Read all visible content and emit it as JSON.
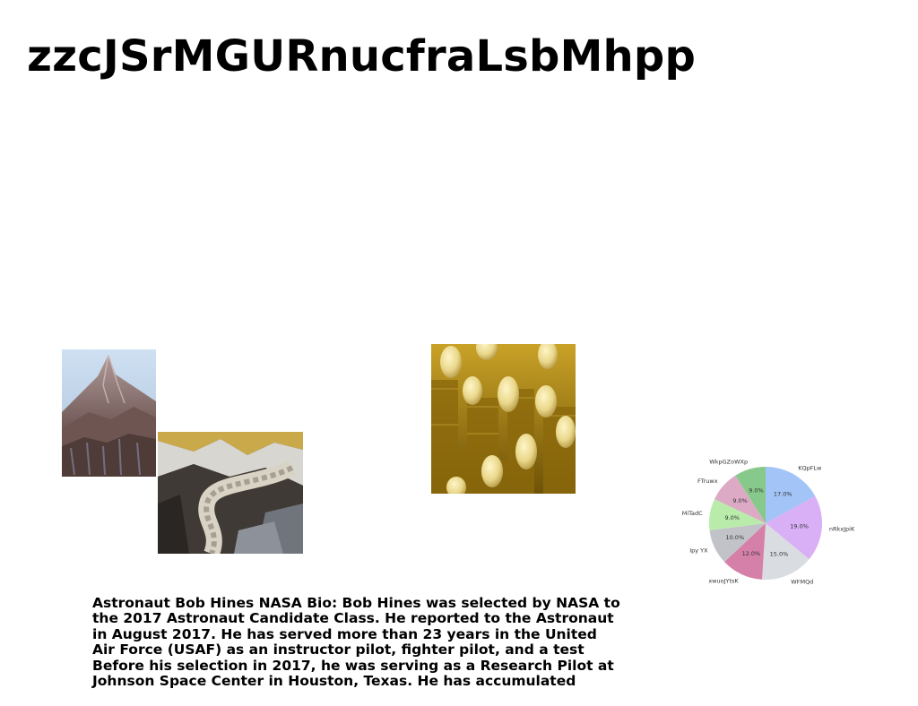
{
  "page": {
    "title": "zzcJSrMGURnucfraLsbMhpp"
  },
  "images": [
    {
      "name": "mountain-photo"
    },
    {
      "name": "glacier-photo"
    },
    {
      "name": "coins-eggs-photo"
    }
  ],
  "chart_data": {
    "type": "pie",
    "title": "",
    "slices": [
      {
        "label": "KQpFLw",
        "value": 17.0,
        "pct_label": "17.0%",
        "color": "#a2c4f6"
      },
      {
        "label": "nRkxJpiK",
        "value": 19.0,
        "pct_label": "19.0%",
        "color": "#d9aff5"
      },
      {
        "label": "WFMQd",
        "value": 15.0,
        "pct_label": "15.0%",
        "color": "#d9dce1"
      },
      {
        "label": "xwuoJYtsK",
        "value": 12.0,
        "pct_label": "12.0%",
        "color": "#d580a8"
      },
      {
        "label": "Ipy YX",
        "value": 10.0,
        "pct_label": "10.0%",
        "color": "#c1c3c9"
      },
      {
        "label": "MiTadC",
        "value": 9.0,
        "pct_label": "9.0%",
        "color": "#b9ecaa"
      },
      {
        "label": "FTruwx",
        "value": 9.0,
        "pct_label": "9.0%",
        "color": "#dcaac4"
      },
      {
        "label": "WkpGZoWXp",
        "value": 9.0,
        "pct_label": "9.0%",
        "color": "#87c98b"
      }
    ],
    "start_angle_deg": 90,
    "direction": "clockwise"
  },
  "body_text": {
    "lines": [
      "Astronaut Bob Hines NASA Bio: Bob Hines was selected by NASA to",
      "the 2017 Astronaut Candidate Class. He reported to the Astronaut",
      "in August 2017. He has served more than 23 years in the United",
      "Air Force (USAF) as an instructor pilot, fighter pilot, and a test",
      "Before his selection in 2017, he was serving as a Research Pilot at",
      "Johnson Space Center in Houston, Texas. He has accumulated"
    ]
  }
}
